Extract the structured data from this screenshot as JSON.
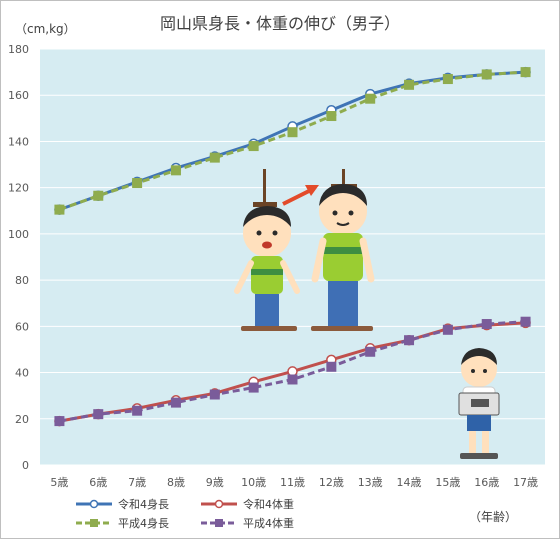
{
  "chart_data": {
    "type": "line",
    "title": "岡山県身長・体重の伸び（男子）",
    "y_unit": "（cm,kg）",
    "x_unit": "（年齢）",
    "categories": [
      "5歳",
      "6歳",
      "7歳",
      "8歳",
      "9歳",
      "10歳",
      "11歳",
      "12歳",
      "13歳",
      "14歳",
      "15歳",
      "16歳",
      "17歳"
    ],
    "ylim": [
      0,
      180
    ],
    "yticks": [
      0,
      20,
      40,
      60,
      80,
      100,
      120,
      140,
      160,
      180
    ],
    "ytick_labels": [
      "0",
      "20",
      "40",
      "60",
      "80",
      "100",
      "120",
      "140",
      "160",
      "180"
    ],
    "grid": true,
    "legend_position": "bottom-left",
    "series": [
      {
        "name": "令和4身長",
        "color": "#3f74b5",
        "style": "solid",
        "marker": "circle",
        "values": [
          110.5,
          116.5,
          122.5,
          128.5,
          133.5,
          139.0,
          146.5,
          153.5,
          160.5,
          165.0,
          167.5,
          169.0,
          170.0
        ]
      },
      {
        "name": "令和4体重",
        "color": "#c0504d",
        "style": "solid",
        "marker": "circle",
        "values": [
          19.0,
          22.0,
          24.5,
          28.0,
          31.0,
          36.0,
          40.5,
          45.5,
          50.5,
          54.0,
          59.0,
          60.5,
          61.5
        ]
      },
      {
        "name": "平成4身長",
        "color": "#8fac4e",
        "style": "dashed",
        "marker": "square",
        "values": [
          110.5,
          116.5,
          122.0,
          127.5,
          133.0,
          138.0,
          144.0,
          151.0,
          158.5,
          164.5,
          167.0,
          169.0,
          170.0
        ]
      },
      {
        "name": "平成4体重",
        "color": "#7a5c9a",
        "style": "dashed",
        "marker": "square",
        "values": [
          19.0,
          22.0,
          23.5,
          27.0,
          30.5,
          33.5,
          37.0,
          42.5,
          49.0,
          54.0,
          58.5,
          61.0,
          62.0
        ]
      }
    ]
  }
}
